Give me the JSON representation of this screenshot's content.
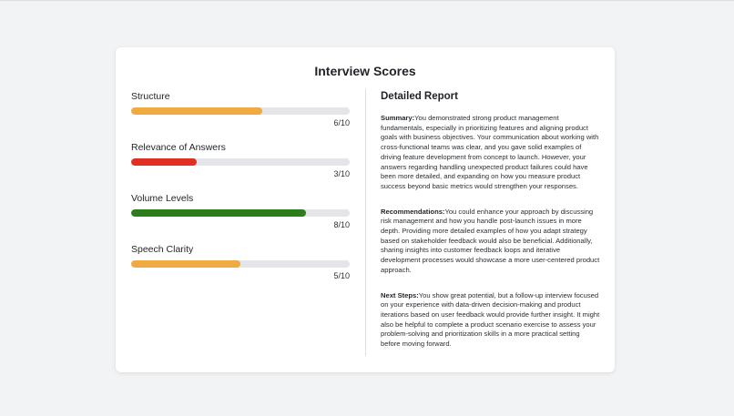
{
  "card": {
    "title": "Interview Scores"
  },
  "scores": [
    {
      "label": "Structure",
      "value_text": "6/10",
      "fraction": 0.6,
      "color": "#f0aa42"
    },
    {
      "label": "Relevance of Answers",
      "value_text": "3/10",
      "fraction": 0.3,
      "color": "#e02f23"
    },
    {
      "label": "Volume Levels",
      "value_text": "8/10",
      "fraction": 0.8,
      "color": "#2e7d1d"
    },
    {
      "label": "Speech Clarity",
      "value_text": "5/10",
      "fraction": 0.5,
      "color": "#f0aa42"
    }
  ],
  "report": {
    "title": "Detailed Report",
    "summary_label": "Summary:",
    "summary_text": "You demonstrated strong product management fundamentals, especially in prioritizing features and aligning product goals with business objectives. Your communication about working with cross-functional teams was clear, and you gave solid examples of driving feature development from concept to launch. However, your answers regarding handling unexpected product failures could have been more detailed, and expanding on how you measure product success beyond basic metrics would strengthen your responses.",
    "recommendations_label": "Recommendations:",
    "recommendations_text": "You could enhance your approach by discussing risk management and how you handle post-launch issues in more depth. Providing more detailed examples of how you adapt strategy based on stakeholder feedback would also be beneficial. Additionally, sharing insights into customer feedback loops and iterative development processes would showcase a more user-centered product approach.",
    "next_steps_label": "Next Steps:",
    "next_steps_text": "You show great potential, but a follow-up interview focused on your experience with data-driven decision-making and product iterations based on user feedback would provide further insight. It might also be helpful to complete a product scenario exercise to assess your problem-solving and prioritization skills in a more practical setting before moving forward."
  }
}
